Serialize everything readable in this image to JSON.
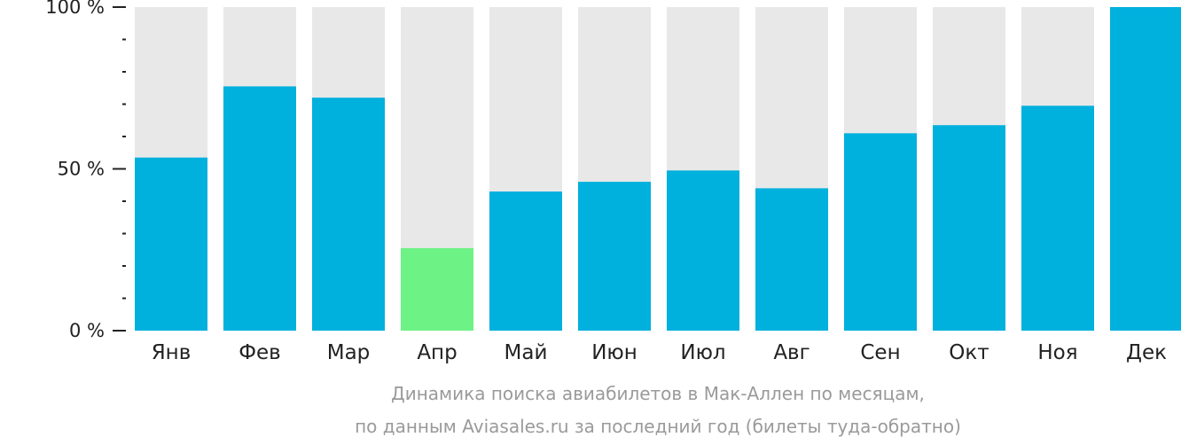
{
  "chart_data": {
    "type": "bar",
    "categories": [
      "Янв",
      "Фев",
      "Мар",
      "Апр",
      "Май",
      "Июн",
      "Июл",
      "Авг",
      "Сен",
      "Окт",
      "Ноя",
      "Дек"
    ],
    "values": [
      53.5,
      75.5,
      72,
      25.5,
      43,
      46,
      49.5,
      44,
      61,
      63.5,
      69.5,
      100
    ],
    "highlight_index": 3,
    "ylim": [
      0,
      100
    ],
    "yticks": [
      {
        "value": 100,
        "label": "100 %"
      },
      {
        "value": 50,
        "label": "50 %"
      },
      {
        "value": 0,
        "label": "0 %"
      }
    ],
    "caption_lines": [
      "Динамика поиска авиабилетов в Мак-Аллен по месяцам,",
      "по данным Aviasales.ru за последний год (билеты туда-обратно)"
    ],
    "colors": {
      "bar": "#00b0dd",
      "highlight": "#6df285",
      "background_bar": "#e8e8e8",
      "axis": "#222222",
      "caption": "#9a9a9a"
    }
  }
}
